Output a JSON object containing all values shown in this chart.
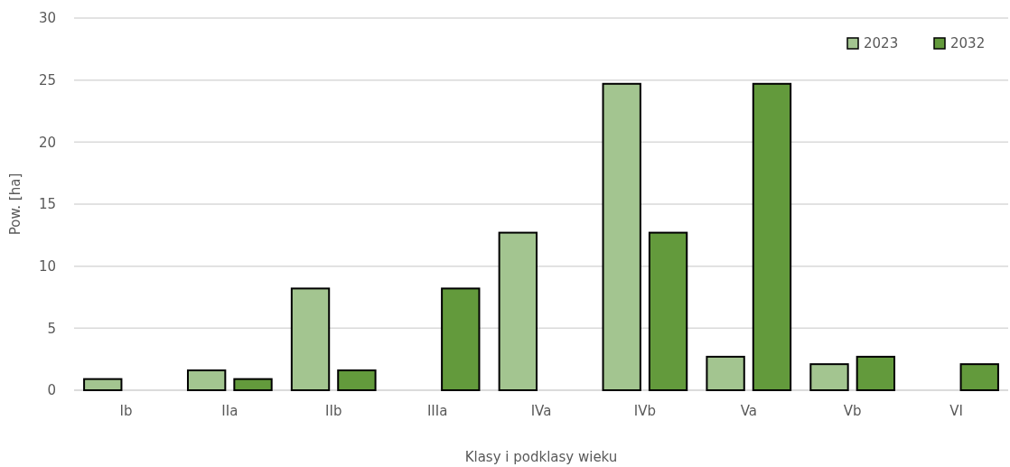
{
  "chart_data": {
    "type": "bar",
    "xlabel": "Klasy i podklasy wieku",
    "ylabel": "Pow. [ha]",
    "categories": [
      "Ib",
      "IIa",
      "IIb",
      "IIIa",
      "IVa",
      "IVb",
      "Va",
      "Vb",
      "VI"
    ],
    "series": [
      {
        "name": "2023",
        "color": "#a3c590",
        "values": [
          0.9,
          1.6,
          8.2,
          null,
          12.7,
          24.7,
          2.7,
          2.1,
          null
        ]
      },
      {
        "name": "2032",
        "color": "#639a3c",
        "values": [
          null,
          0.9,
          1.6,
          8.2,
          null,
          12.7,
          24.7,
          2.7,
          2.1
        ]
      }
    ],
    "ylim": [
      0,
      30
    ],
    "yticks": [
      0,
      5,
      10,
      15,
      20,
      25,
      30
    ],
    "grid": "y",
    "legend": "top right"
  }
}
